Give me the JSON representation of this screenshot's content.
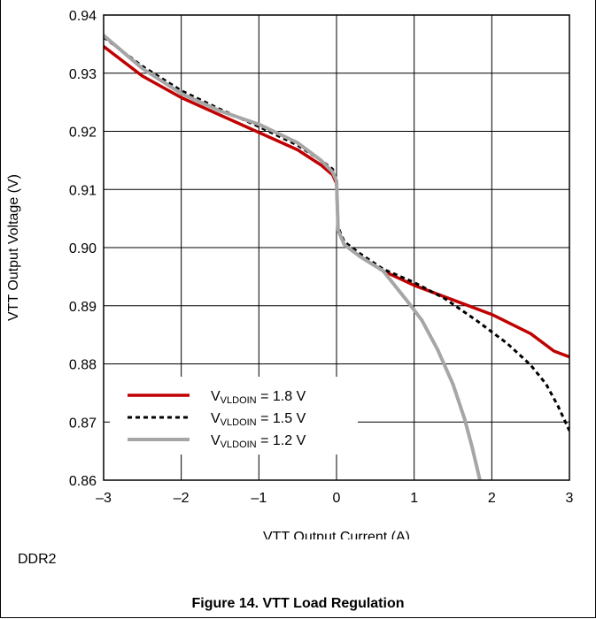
{
  "chart_data": {
    "type": "line",
    "xlabel": "VTT Output Current (A)",
    "ylabel": "VTT Output Voltage (V)",
    "xlim": [
      -3,
      3
    ],
    "ylim": [
      0.86,
      0.94
    ],
    "x_ticks": [
      "–3",
      "–2",
      "–1",
      "0",
      "1",
      "2",
      "3"
    ],
    "y_ticks": [
      "0.86",
      "0.87",
      "0.88",
      "0.89",
      "0.90",
      "0.91",
      "0.92",
      "0.93",
      "0.94"
    ],
    "grid": true,
    "legend_position": "bottom-left",
    "series": [
      {
        "name": "V_VLDOIN = 1.8 V",
        "legend_main": "V",
        "legend_sub": "VLDOIN",
        "legend_rest": " = 1.8 V",
        "color": "#c00000",
        "style": "solid",
        "x": [
          -3.0,
          -2.5,
          -2.0,
          -1.5,
          -1.0,
          -0.5,
          -0.2,
          -0.05,
          0.0,
          0.02,
          0.1,
          0.3,
          0.6,
          1.0,
          1.5,
          2.0,
          2.5,
          2.8,
          3.0
        ],
        "y": [
          0.9346,
          0.9295,
          0.9258,
          0.9228,
          0.9198,
          0.9168,
          0.9142,
          0.9125,
          0.911,
          0.903,
          0.9005,
          0.8985,
          0.896,
          0.8935,
          0.891,
          0.8885,
          0.8852,
          0.8822,
          0.8812
        ]
      },
      {
        "name": "V_VLDOIN = 1.5 V",
        "legend_main": "V",
        "legend_sub": "VLDOIN",
        "legend_rest": " = 1.5 V",
        "color": "#000000",
        "style": "dotted",
        "x": [
          -3.0,
          -2.5,
          -2.0,
          -1.5,
          -1.0,
          -0.5,
          -0.2,
          -0.05,
          0.0,
          0.02,
          0.1,
          0.3,
          0.6,
          1.0,
          1.4,
          1.8,
          2.2,
          2.5,
          2.7,
          2.85,
          3.0
        ],
        "y": [
          0.9362,
          0.9312,
          0.927,
          0.9238,
          0.9208,
          0.9176,
          0.915,
          0.9135,
          0.9115,
          0.9035,
          0.901,
          0.899,
          0.8963,
          0.894,
          0.8912,
          0.8875,
          0.8835,
          0.8798,
          0.8765,
          0.8728,
          0.8685
        ]
      },
      {
        "name": "V_VLDOIN = 1.2 V",
        "legend_main": "V",
        "legend_sub": "VLDOIN",
        "legend_rest": " = 1.2 V",
        "color": "#a6a6a6",
        "style": "solid",
        "x": [
          -3.0,
          -2.5,
          -2.0,
          -1.5,
          -1.0,
          -0.5,
          -0.2,
          -0.05,
          0.0,
          0.02,
          0.1,
          0.3,
          0.6,
          0.9,
          1.1,
          1.3,
          1.5,
          1.65,
          1.75,
          1.82,
          1.85
        ],
        "y": [
          0.9365,
          0.9308,
          0.9265,
          0.9235,
          0.9212,
          0.918,
          0.915,
          0.913,
          0.9115,
          0.903,
          0.9005,
          0.8985,
          0.896,
          0.891,
          0.8875,
          0.8825,
          0.8765,
          0.8705,
          0.8655,
          0.8615,
          0.8598
        ]
      }
    ]
  },
  "bottom_label": "DDR2",
  "caption": "Figure 14. VTT Load Regulation"
}
